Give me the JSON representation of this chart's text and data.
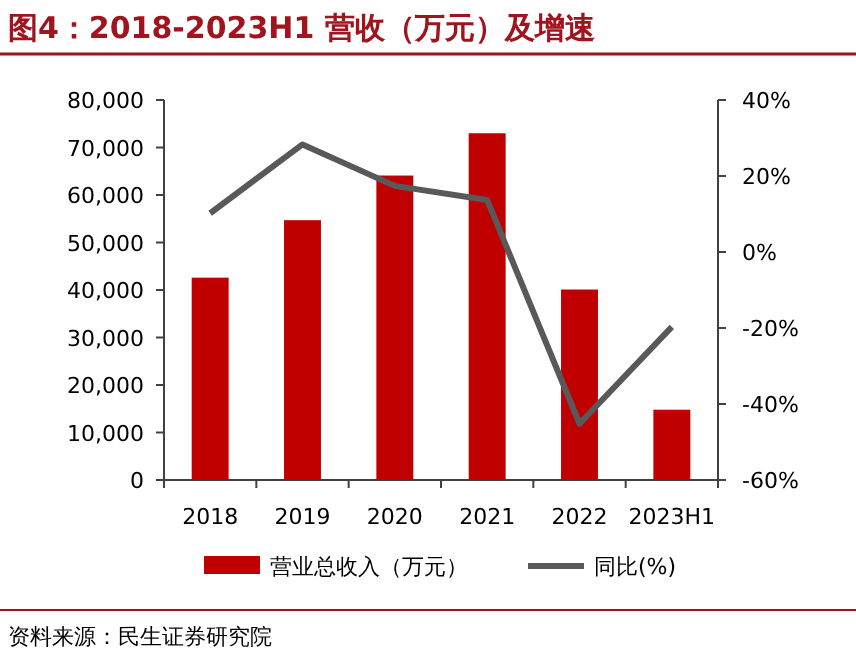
{
  "chart_data": {
    "type": "bar",
    "title": "图4：2018-2023H1 营收（万元）及增速",
    "categories": [
      "2018",
      "2019",
      "2020",
      "2021",
      "2022",
      "2023H1"
    ],
    "series": [
      {
        "name": "营业总收入（万元）",
        "color": "#c00000",
        "values": [
          42600,
          54700,
          64100,
          73000,
          40100,
          14800
        ]
      },
      {
        "name": "同比(%)",
        "type": "line",
        "axis": "y2",
        "color": "#595959",
        "values": [
          10.2,
          28.3,
          17.4,
          13.7,
          -45.2,
          -19.7
        ]
      }
    ],
    "ylim": [
      0,
      80000
    ],
    "yticks": [
      {
        "value": 0,
        "label": "0"
      },
      {
        "value": 10000,
        "label": "10,000"
      },
      {
        "value": 20000,
        "label": "20,000"
      },
      {
        "value": 30000,
        "label": "30,000"
      },
      {
        "value": 40000,
        "label": "40,000"
      },
      {
        "value": 50000,
        "label": "50,000"
      },
      {
        "value": 60000,
        "label": "60,000"
      },
      {
        "value": 70000,
        "label": "70,000"
      },
      {
        "value": 80000,
        "label": "80,000"
      }
    ],
    "y2lim": [
      -60,
      40
    ],
    "y2ticks": [
      {
        "value": -60,
        "label": "-60%"
      },
      {
        "value": -40,
        "label": "-40%"
      },
      {
        "value": -20,
        "label": "-20%"
      },
      {
        "value": 0,
        "label": "0%"
      },
      {
        "value": 20,
        "label": "20%"
      },
      {
        "value": 40,
        "label": "40%"
      }
    ],
    "legend": "bottom",
    "annotations": [
      "资料来源：民生证券研究院"
    ]
  }
}
